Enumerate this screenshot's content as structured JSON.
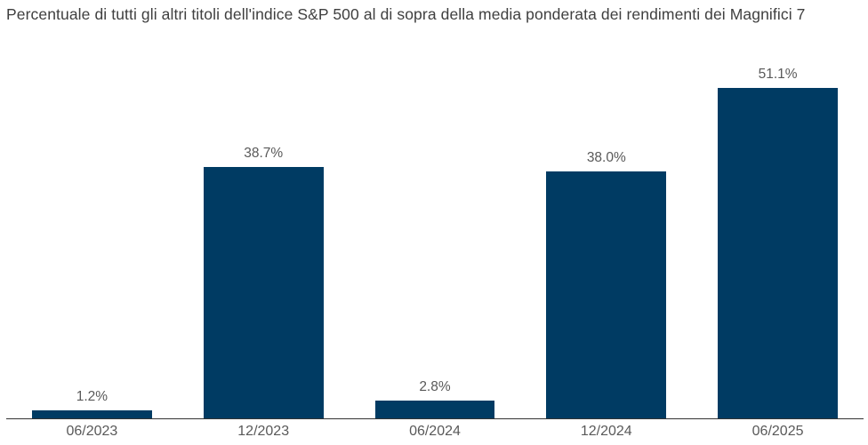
{
  "title": "Percentuale di tutti gli altri titoli dell'indice S&P 500 al di sopra della media ponderata dei rendimenti dei Magnifici 7",
  "chart_data": {
    "type": "bar",
    "title": "Percentuale di tutti gli altri titoli dell'indice S&P 500 al di sopra della media ponderata dei rendimenti dei Magnifici 7",
    "categories": [
      "06/2023",
      "12/2023",
      "06/2024",
      "12/2024",
      "06/2025"
    ],
    "values": [
      1.2,
      38.7,
      2.8,
      38.0,
      51.1
    ],
    "value_labels": [
      "1.2%",
      "38.7%",
      "2.8%",
      "38.0%",
      "51.1%"
    ],
    "xlabel": "",
    "ylabel": "",
    "ylim": [
      0,
      54.1
    ],
    "grid": false,
    "legend": null,
    "colors": {
      "bar": "#003B63",
      "value_label": "#595959",
      "tick_label": "#595959",
      "axis_line": "#333333",
      "title": "#3F3F3F",
      "background": "#FFFFFF"
    }
  }
}
